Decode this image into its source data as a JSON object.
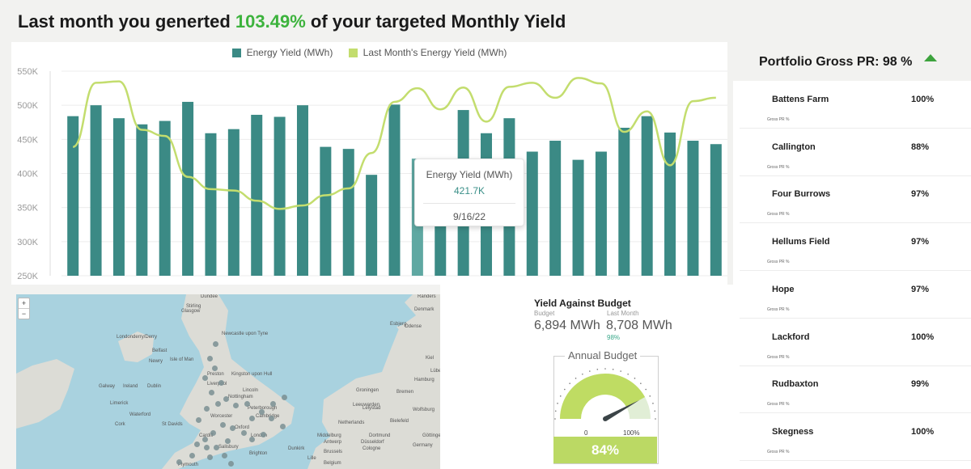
{
  "header": {
    "prefix": "Last month you generted ",
    "percent": "103.49%",
    "suffix": " of your targeted Monthly Yield"
  },
  "colors": {
    "bar": "#3b8a85",
    "bar_highlight": "#5fa8a2",
    "line": "#c3dd6e",
    "positive": "#3db33d"
  },
  "chart_data": {
    "type": "bar",
    "series": [
      {
        "name": "Energy Yield (MWh)",
        "type": "bar",
        "values": [
          484,
          500,
          481,
          472,
          477,
          505,
          459,
          465,
          486,
          483,
          500,
          439,
          436,
          398,
          501,
          421.7,
          421,
          493,
          459,
          481,
          432,
          448,
          420,
          432,
          467,
          484,
          460,
          448,
          443
        ]
      },
      {
        "name": "Last Month's Energy Yield (MWh)",
        "type": "line",
        "values": [
          439,
          533,
          535,
          464,
          455,
          395,
          377,
          375,
          360,
          348,
          353,
          368,
          378,
          430,
          505,
          525,
          494,
          526,
          476,
          527,
          533,
          511,
          540,
          532,
          461,
          491,
          412,
          506,
          511
        ]
      }
    ],
    "yticks": [
      "550K",
      "500K",
      "450K",
      "400K",
      "350K",
      "300K",
      "250K"
    ],
    "ylim": [
      250,
      550
    ],
    "xlabel": "",
    "ylabel": "",
    "highlight_index": 15,
    "tooltip": {
      "title": "Energy Yield (MWh)",
      "value": "421.7K",
      "date": "9/16/22"
    }
  },
  "map": {
    "zoom_in": "+",
    "zoom_out": "−",
    "labels": [
      "Dundee",
      "Stirling",
      "Glasgow",
      "Randers",
      "Denmark",
      "Esbjerg",
      "Odense",
      "Londonderry/Derry",
      "Newcastle upon Tyne",
      "Belfast",
      "Newry",
      "Isle of Man",
      "Kiel",
      "Lübeck",
      "Hamburg",
      "Preston",
      "Kingston upon Hull",
      "Galway",
      "Ireland",
      "Dublin",
      "Liverpool",
      "Lincoln",
      "Nottingham",
      "Bremen",
      "Groningen",
      "Limerick",
      "Peterborough",
      "Leeuwarden",
      "Lelystad",
      "Waterford",
      "Worcester",
      "Cambridge",
      "Netherlands",
      "Bielefeld",
      "Cork",
      "St Davids",
      "Oxford",
      "Wolfsburg",
      "Cardiff",
      "London",
      "Middelburg",
      "Dortmund",
      "Göttingen",
      "Antwerp",
      "Düsseldorf",
      "Germany",
      "Salisbury",
      "Dunkirk",
      "Brussels",
      "Cologne",
      "Brighton",
      "Lille",
      "Belgium",
      "Plymouth"
    ]
  },
  "budget": {
    "title": "Yield Against Budget",
    "budget_label": "Budget",
    "budget_value": "6,894 MWh",
    "last_month_label": "Last Month",
    "last_month_value": "8,708 MWh",
    "percent": "98%",
    "gauge": {
      "title": "Annual Budget",
      "min_label": "0",
      "max_label": "100%",
      "value": 84,
      "display": "84%"
    }
  },
  "portfolio": {
    "title": "Portfolio Gross PR: 98 %",
    "sublabel": "Gross PR %",
    "sites": [
      {
        "name": "Battens Farm",
        "value": "100%"
      },
      {
        "name": "Callington",
        "value": "88%"
      },
      {
        "name": "Four Burrows",
        "value": "97%"
      },
      {
        "name": "Hellums Field",
        "value": "97%"
      },
      {
        "name": "Hope",
        "value": "97%"
      },
      {
        "name": "Lackford",
        "value": "100%"
      },
      {
        "name": "Rudbaxton",
        "value": "99%"
      },
      {
        "name": "Skegness",
        "value": "100%"
      }
    ]
  }
}
